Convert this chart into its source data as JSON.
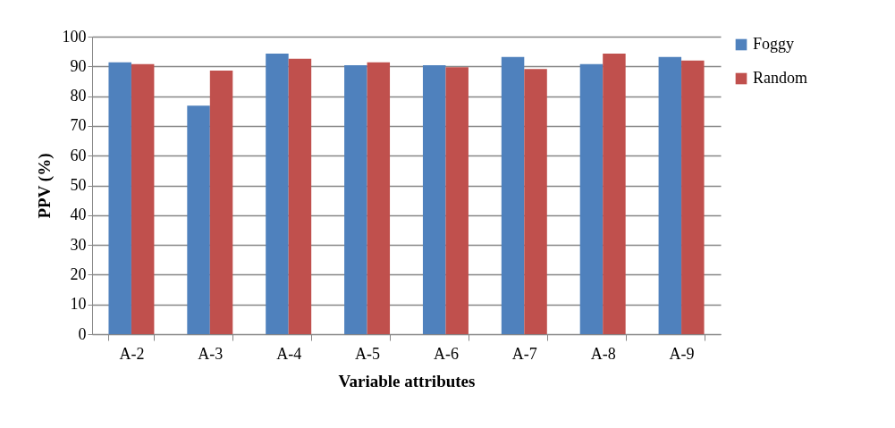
{
  "chart_data": {
    "type": "bar",
    "xlabel": "Variable  attributes",
    "ylabel": "PPV (%)",
    "categories": [
      "A-2",
      "A-3",
      "A-4",
      "A-5",
      "A-6",
      "A-7",
      "A-8",
      "A-9"
    ],
    "series": [
      {
        "name": "Foggy",
        "color": "#4f81bd",
        "values": [
          91.4,
          76.8,
          94.3,
          90.4,
          90.4,
          93.2,
          90.8,
          93.2
        ]
      },
      {
        "name": "Random",
        "color": "#c0504d",
        "values": [
          90.8,
          88.6,
          92.6,
          91.4,
          89.7,
          89.1,
          94.3,
          92.0
        ]
      }
    ],
    "ylim": [
      0,
      100
    ],
    "yticks": [
      0,
      10,
      20,
      30,
      40,
      50,
      60,
      70,
      80,
      90,
      100
    ],
    "grid": "y",
    "legend": "right"
  }
}
